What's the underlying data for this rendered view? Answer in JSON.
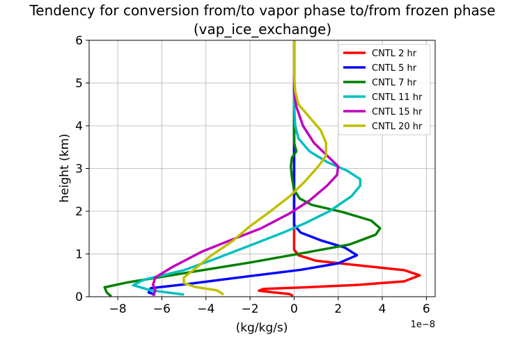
{
  "chart_data": {
    "type": "line",
    "title": "Tendency for conversion from/to vapor phase to/from frozen phase",
    "subtitle": "(vap_ice_exchange)",
    "xlabel": "(kg/kg/s)",
    "ylabel": "height (km)",
    "x_scale_label": "1e−8",
    "xlim": [
      -9.3,
      6.4
    ],
    "ylim": [
      0,
      6
    ],
    "xticks": [
      -8,
      -6,
      -4,
      -2,
      0,
      2,
      4,
      6
    ],
    "xtick_labels": [
      "−8",
      "−6",
      "−4",
      "−2",
      "0",
      "2",
      "4",
      "6"
    ],
    "yticks": [
      0,
      1,
      2,
      3,
      4,
      5,
      6
    ],
    "ytick_labels": [
      "0",
      "1",
      "2",
      "3",
      "4",
      "5",
      "6"
    ],
    "grid": true,
    "legend_position": "top-right",
    "series": [
      {
        "name": "CNTL 2 hr",
        "color": "#ff0000",
        "points": [
          [
            -0.05,
            0.02
          ],
          [
            -0.2,
            0.06
          ],
          [
            -0.9,
            0.1
          ],
          [
            -1.6,
            0.14
          ],
          [
            -1.4,
            0.18
          ],
          [
            0.5,
            0.22
          ],
          [
            3.0,
            0.28
          ],
          [
            5.0,
            0.36
          ],
          [
            5.7,
            0.5
          ],
          [
            5.0,
            0.62
          ],
          [
            3.0,
            0.73
          ],
          [
            1.0,
            0.84
          ],
          [
            0.2,
            0.97
          ],
          [
            0.0,
            1.1
          ],
          [
            0.0,
            2.0
          ],
          [
            0.0,
            3.0
          ],
          [
            0.0,
            4.0
          ],
          [
            0.0,
            5.0
          ],
          [
            0.0,
            6.0
          ]
        ]
      },
      {
        "name": "CNTL 5 hr",
        "color": "#0000ff",
        "points": [
          [
            -6.3,
            0.05
          ],
          [
            -6.6,
            0.1
          ],
          [
            -6.5,
            0.2
          ],
          [
            -4.8,
            0.3
          ],
          [
            -2.5,
            0.45
          ],
          [
            0.3,
            0.63
          ],
          [
            2.0,
            0.78
          ],
          [
            2.85,
            0.97
          ],
          [
            2.3,
            1.15
          ],
          [
            1.2,
            1.32
          ],
          [
            0.3,
            1.5
          ],
          [
            0.0,
            1.68
          ],
          [
            0.0,
            2.0
          ],
          [
            0.0,
            3.0
          ],
          [
            0.0,
            4.0
          ],
          [
            0.0,
            5.0
          ],
          [
            0.0,
            6.0
          ]
        ]
      },
      {
        "name": "CNTL 7 hr",
        "color": "#008000",
        "points": [
          [
            -8.3,
            0.01
          ],
          [
            -8.5,
            0.1
          ],
          [
            -8.6,
            0.22
          ],
          [
            -7.5,
            0.34
          ],
          [
            -5.0,
            0.55
          ],
          [
            -2.0,
            0.8
          ],
          [
            0.5,
            1.03
          ],
          [
            2.5,
            1.22
          ],
          [
            3.7,
            1.45
          ],
          [
            3.9,
            1.6
          ],
          [
            3.5,
            1.78
          ],
          [
            2.2,
            1.98
          ],
          [
            0.8,
            2.15
          ],
          [
            0.25,
            2.3
          ],
          [
            0.0,
            2.5
          ],
          [
            -0.1,
            2.8
          ],
          [
            -0.15,
            3.05
          ],
          [
            -0.1,
            3.25
          ],
          [
            0.1,
            3.4
          ],
          [
            0.0,
            3.6
          ],
          [
            0.0,
            4.0
          ],
          [
            0.0,
            5.0
          ],
          [
            0.0,
            6.0
          ]
        ]
      },
      {
        "name": "CNTL 11 hr",
        "color": "#00bfbf",
        "points": [
          [
            -5.0,
            0.05
          ],
          [
            -6.5,
            0.15
          ],
          [
            -7.3,
            0.27
          ],
          [
            -6.8,
            0.4
          ],
          [
            -5.0,
            0.62
          ],
          [
            -3.5,
            0.9
          ],
          [
            -2.0,
            1.2
          ],
          [
            -0.5,
            1.5
          ],
          [
            0.5,
            1.72
          ],
          [
            1.6,
            2.0
          ],
          [
            2.6,
            2.35
          ],
          [
            3.0,
            2.6
          ],
          [
            3.0,
            2.75
          ],
          [
            2.4,
            2.95
          ],
          [
            1.5,
            3.15
          ],
          [
            0.7,
            3.4
          ],
          [
            0.2,
            3.7
          ],
          [
            0.05,
            4.0
          ],
          [
            0.0,
            4.5
          ],
          [
            0.0,
            5.0
          ],
          [
            0.0,
            6.0
          ]
        ]
      },
      {
        "name": "CNTL 15 hr",
        "color": "#bf00bf",
        "points": [
          [
            -6.4,
            0.02
          ],
          [
            -6.3,
            0.15
          ],
          [
            -6.4,
            0.28
          ],
          [
            -6.3,
            0.45
          ],
          [
            -5.5,
            0.7
          ],
          [
            -4.2,
            1.05
          ],
          [
            -3.0,
            1.3
          ],
          [
            -1.5,
            1.6
          ],
          [
            -0.2,
            1.95
          ],
          [
            0.7,
            2.25
          ],
          [
            1.5,
            2.6
          ],
          [
            1.95,
            2.85
          ],
          [
            2.0,
            3.05
          ],
          [
            1.5,
            3.3
          ],
          [
            0.9,
            3.6
          ],
          [
            0.4,
            4.0
          ],
          [
            0.1,
            4.45
          ],
          [
            0.0,
            4.8
          ],
          [
            0.0,
            5.2
          ],
          [
            0.0,
            6.0
          ]
        ]
      },
      {
        "name": "CNTL 20 hr",
        "color": "#bfbf00",
        "points": [
          [
            -3.2,
            0.05
          ],
          [
            -3.5,
            0.15
          ],
          [
            -4.5,
            0.23
          ],
          [
            -5.0,
            0.32
          ],
          [
            -5.0,
            0.45
          ],
          [
            -4.5,
            0.65
          ],
          [
            -3.8,
            0.95
          ],
          [
            -2.8,
            1.3
          ],
          [
            -2.0,
            1.65
          ],
          [
            -1.2,
            1.95
          ],
          [
            -0.2,
            2.35
          ],
          [
            0.5,
            2.7
          ],
          [
            1.1,
            3.05
          ],
          [
            1.45,
            3.3
          ],
          [
            1.45,
            3.6
          ],
          [
            1.2,
            3.9
          ],
          [
            0.7,
            4.2
          ],
          [
            0.2,
            4.5
          ],
          [
            0.05,
            4.8
          ],
          [
            0.0,
            5.2
          ],
          [
            0.0,
            6.0
          ]
        ]
      }
    ]
  }
}
